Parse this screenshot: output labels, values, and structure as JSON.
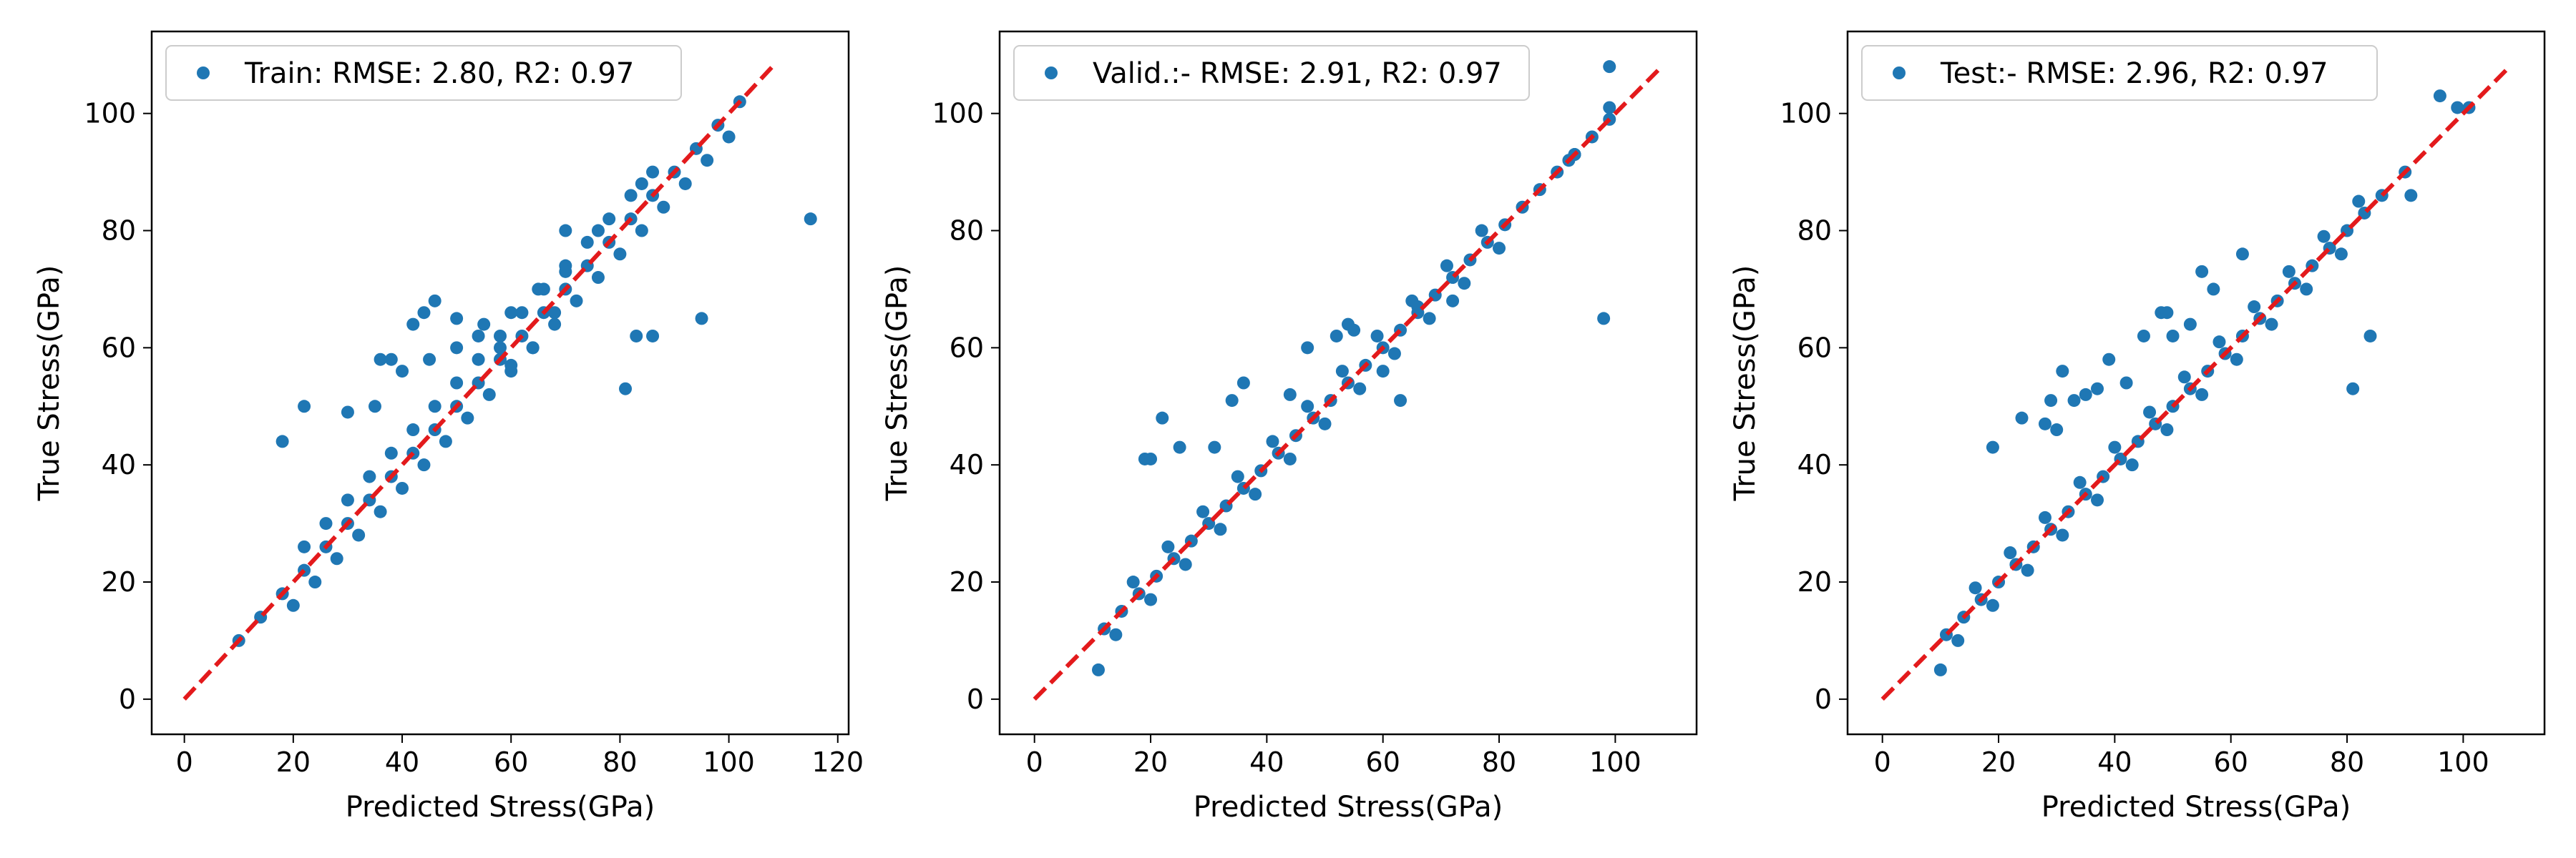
{
  "chart_data": [
    {
      "type": "scatter",
      "legend": "Train: RMSE: 2.80, R2: 0.97",
      "legend_position": "top-left",
      "xlabel": "Predicted Stress(GPa)",
      "ylabel": "True Stress(GPa)",
      "xlim": [
        -6,
        122
      ],
      "ylim": [
        -6,
        114
      ],
      "xticks": [
        0,
        20,
        40,
        60,
        80,
        100,
        120
      ],
      "yticks": [
        0,
        20,
        40,
        60,
        80,
        100
      ],
      "point_color": "#1f77b4",
      "line_color": "#e31a1c",
      "reference_line": {
        "x": [
          0,
          108
        ],
        "y": [
          0,
          108
        ]
      },
      "points": {
        "x": [
          10,
          14,
          18,
          22,
          26,
          30,
          34,
          38,
          42,
          46,
          50,
          54,
          58,
          62,
          66,
          70,
          74,
          78,
          82,
          86,
          90,
          94,
          98,
          102,
          20,
          24,
          28,
          32,
          36,
          40,
          44,
          48,
          52,
          56,
          60,
          64,
          68,
          72,
          76,
          80,
          84,
          88,
          92,
          96,
          100,
          22,
          26,
          30,
          34,
          38,
          42,
          46,
          50,
          54,
          58,
          62,
          66,
          70,
          74,
          78,
          82,
          86,
          18,
          22,
          30,
          35,
          40,
          45,
          50,
          55,
          60,
          65,
          70,
          76,
          84,
          36,
          38,
          42,
          44,
          46,
          50,
          54,
          58,
          60,
          64,
          68,
          70,
          115,
          95,
          86,
          83,
          81
        ],
        "y": [
          10,
          14,
          18,
          22,
          26,
          30,
          34,
          38,
          42,
          46,
          50,
          54,
          58,
          62,
          66,
          70,
          74,
          78,
          82,
          86,
          90,
          94,
          98,
          102,
          16,
          20,
          24,
          28,
          32,
          36,
          40,
          44,
          48,
          52,
          56,
          60,
          64,
          68,
          72,
          76,
          80,
          84,
          88,
          92,
          96,
          26,
          30,
          34,
          38,
          42,
          46,
          50,
          54,
          58,
          62,
          66,
          70,
          74,
          78,
          82,
          86,
          90,
          44,
          50,
          49,
          50,
          56,
          58,
          60,
          64,
          66,
          70,
          73,
          80,
          88,
          58,
          58,
          64,
          66,
          68,
          65,
          62,
          60,
          57,
          60,
          66,
          80,
          82,
          65,
          62,
          62,
          53
        ]
      }
    },
    {
      "type": "scatter",
      "legend": "Valid.:- RMSE: 2.91, R2: 0.97",
      "legend_position": "top-left",
      "xlabel": "Predicted Stress(GPa)",
      "ylabel": "True Stress(GPa)",
      "xlim": [
        -6,
        114
      ],
      "ylim": [
        -6,
        114
      ],
      "xticks": [
        0,
        20,
        40,
        60,
        80,
        100
      ],
      "yticks": [
        0,
        20,
        40,
        60,
        80,
        100
      ],
      "point_color": "#1f77b4",
      "line_color": "#e31a1c",
      "reference_line": {
        "x": [
          0,
          108
        ],
        "y": [
          0,
          108
        ]
      },
      "points": {
        "x": [
          12,
          15,
          18,
          21,
          24,
          27,
          30,
          33,
          36,
          39,
          42,
          45,
          48,
          51,
          54,
          57,
          60,
          63,
          66,
          69,
          72,
          75,
          78,
          81,
          84,
          87,
          90,
          93,
          96,
          99,
          14,
          20,
          26,
          32,
          38,
          44,
          50,
          56,
          62,
          68,
          74,
          80,
          17,
          23,
          29,
          35,
          41,
          47,
          53,
          59,
          65,
          71,
          77,
          19,
          20,
          22,
          25,
          31,
          34,
          36,
          44,
          47,
          52,
          54,
          55,
          60,
          63,
          66,
          72,
          11,
          99,
          99,
          98,
          92,
          93
        ],
        "y": [
          12,
          15,
          18,
          21,
          24,
          27,
          30,
          33,
          36,
          39,
          42,
          45,
          48,
          51,
          54,
          57,
          60,
          63,
          66,
          69,
          72,
          75,
          78,
          81,
          84,
          87,
          90,
          93,
          96,
          99,
          11,
          17,
          23,
          29,
          35,
          41,
          47,
          53,
          59,
          65,
          71,
          77,
          20,
          26,
          32,
          38,
          44,
          50,
          56,
          62,
          68,
          74,
          80,
          41,
          41,
          48,
          43,
          43,
          51,
          54,
          52,
          60,
          62,
          64,
          63,
          56,
          51,
          67,
          68,
          5,
          108,
          101,
          65,
          92,
          93
        ]
      }
    },
    {
      "type": "scatter",
      "legend": "Test:- RMSE: 2.96, R2: 0.97",
      "legend_position": "top-left",
      "xlabel": "Predicted Stress(GPa)",
      "ylabel": "True Stress(GPa)",
      "xlim": [
        -6,
        114
      ],
      "ylim": [
        -6,
        114
      ],
      "xticks": [
        0,
        20,
        40,
        60,
        80,
        100
      ],
      "yticks": [
        0,
        20,
        40,
        60,
        80,
        100
      ],
      "point_color": "#1f77b4",
      "line_color": "#e31a1c",
      "reference_line": {
        "x": [
          0,
          108
        ],
        "y": [
          0,
          108
        ]
      },
      "points": {
        "x": [
          11,
          14,
          17,
          20,
          23,
          26,
          29,
          32,
          35,
          38,
          41,
          44,
          47,
          50,
          53,
          56,
          59,
          62,
          65,
          68,
          71,
          74,
          77,
          80,
          83,
          86,
          90,
          13,
          19,
          25,
          31,
          37,
          43,
          49,
          55,
          61,
          67,
          73,
          79,
          16,
          22,
          28,
          34,
          40,
          46,
          52,
          58,
          64,
          70,
          76,
          82,
          19,
          24,
          28,
          29,
          30,
          31,
          33,
          35,
          37,
          39,
          42,
          45,
          48,
          49,
          50,
          53,
          55,
          57,
          62,
          10,
          84,
          81,
          96,
          99,
          101,
          91
        ],
        "y": [
          11,
          14,
          17,
          20,
          23,
          26,
          29,
          32,
          35,
          38,
          41,
          44,
          47,
          50,
          53,
          56,
          59,
          62,
          65,
          68,
          71,
          74,
          77,
          80,
          83,
          86,
          90,
          10,
          16,
          22,
          28,
          34,
          40,
          46,
          52,
          58,
          64,
          70,
          76,
          19,
          25,
          31,
          37,
          43,
          49,
          55,
          61,
          67,
          73,
          79,
          85,
          43,
          48,
          47,
          51,
          46,
          56,
          51,
          52,
          53,
          58,
          54,
          62,
          66,
          66,
          62,
          64,
          73,
          70,
          76,
          5,
          62,
          53,
          103,
          101,
          101,
          86
        ]
      }
    }
  ]
}
